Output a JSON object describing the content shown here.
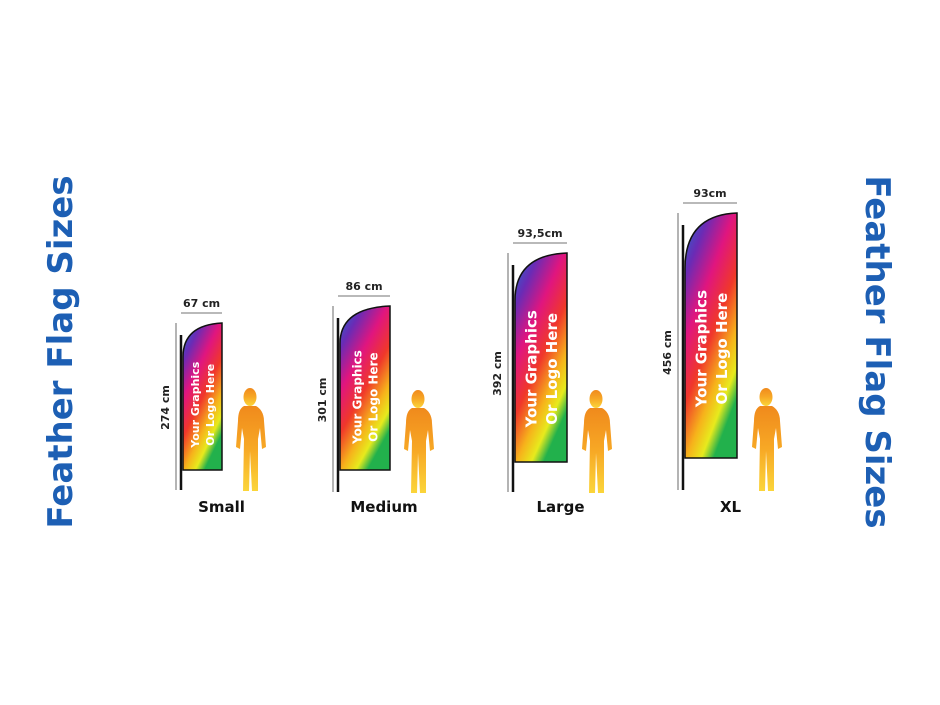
{
  "titles": {
    "left": "Feather Flag Sizes",
    "right": "Feather Flag Sizes"
  },
  "flags": [
    {
      "name": "Small",
      "width": "67 cm",
      "height": "274 cm",
      "text": [
        "Your Graphics",
        "Or Logo Here"
      ]
    },
    {
      "name": "Medium",
      "width": "86 cm",
      "height": "301 cm",
      "text": [
        "Your Graphics",
        "Or Logo Here"
      ]
    },
    {
      "name": "Large",
      "width": "93,5cm",
      "height": "392 cm",
      "text": [
        "Your Graphics",
        "Or Logo Here"
      ]
    },
    {
      "name": "XL",
      "width": "93cm",
      "height": "456 cm",
      "text": [
        "Your Graphics",
        "Or Logo Here"
      ]
    }
  ]
}
